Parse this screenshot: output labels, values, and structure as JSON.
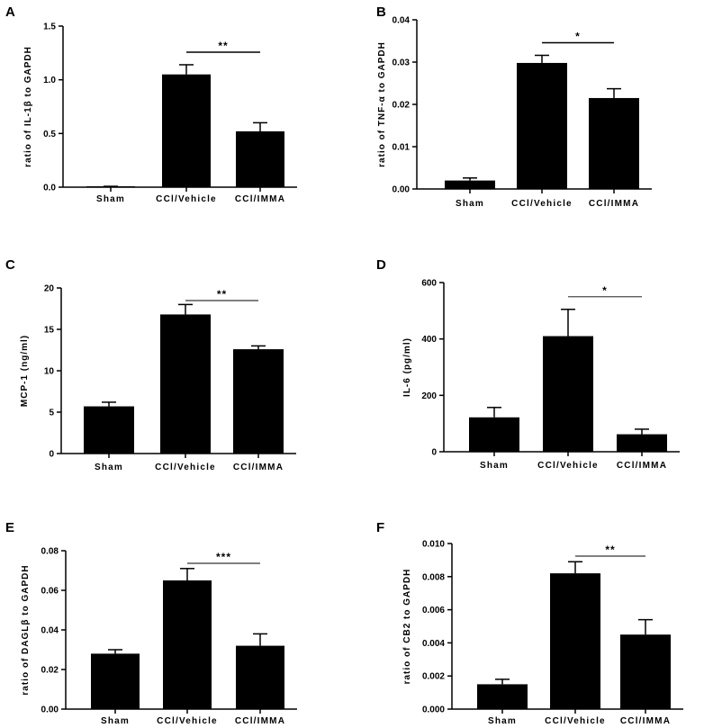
{
  "colors": {
    "bar": "#000000",
    "axis": "#000000",
    "sig_line": "#000000",
    "background": "#ffffff"
  },
  "chart_data": [
    {
      "panel": "A",
      "type": "bar",
      "ylabel_parts": [
        "ratio of IL-1",
        "β",
        " to GAPDH"
      ],
      "categories": [
        "Sham",
        "CCl/Vehicle",
        "CCl/IMMA"
      ],
      "values": [
        0.005,
        1.05,
        0.52
      ],
      "errors": [
        0.003,
        0.09,
        0.08
      ],
      "ylim": [
        0,
        1.5
      ],
      "yticks": [
        "0.0",
        "0.5",
        "1.0",
        "1.5"
      ],
      "significance": {
        "from": 1,
        "to": 2,
        "label": "**"
      }
    },
    {
      "panel": "B",
      "type": "bar",
      "ylabel_parts": [
        "ratio of TNF-",
        "α",
        " to GAPDH"
      ],
      "categories": [
        "Sham",
        "CCl/Vehicle",
        "CCl/IMMA"
      ],
      "values": [
        0.002,
        0.0298,
        0.0215
      ],
      "errors": [
        0.0006,
        0.0018,
        0.0022
      ],
      "ylim": [
        0,
        0.04
      ],
      "yticks": [
        "0.00",
        "0.01",
        "0.02",
        "0.03",
        "0.04"
      ],
      "significance": {
        "from": 1,
        "to": 2,
        "label": "*"
      }
    },
    {
      "panel": "C",
      "type": "bar",
      "ylabel_parts": [
        "MCP-1 (ng/ml)"
      ],
      "categories": [
        "Sham",
        "CCl/Vehicle",
        "CCl/IMMA"
      ],
      "values": [
        5.7,
        16.8,
        12.6
      ],
      "errors": [
        0.5,
        1.2,
        0.4
      ],
      "ylim": [
        0,
        20
      ],
      "yticks": [
        "0",
        "5",
        "10",
        "15",
        "20"
      ],
      "significance": {
        "from": 1,
        "to": 2,
        "label": "**"
      }
    },
    {
      "panel": "D",
      "type": "bar",
      "ylabel_parts": [
        "IL-6 (pg/ml)"
      ],
      "categories": [
        "Sham",
        "CCl/Vehicle",
        "CCl/IMMA"
      ],
      "values": [
        122,
        410,
        62
      ],
      "errors": [
        35,
        95,
        18
      ],
      "ylim": [
        0,
        600
      ],
      "yticks": [
        "0",
        "200",
        "400",
        "600"
      ],
      "significance": {
        "from": 1,
        "to": 2,
        "label": "*"
      }
    },
    {
      "panel": "E",
      "type": "bar",
      "ylabel_parts": [
        "ratio of DAGL",
        "β",
        " to GAPDH"
      ],
      "categories": [
        "Sham",
        "CCl/Vehicle",
        "CCl/IMMA"
      ],
      "values": [
        0.028,
        0.065,
        0.032
      ],
      "errors": [
        0.002,
        0.006,
        0.006
      ],
      "ylim": [
        0,
        0.08
      ],
      "yticks": [
        "0.00",
        "0.02",
        "0.04",
        "0.06",
        "0.08"
      ],
      "significance": {
        "from": 1,
        "to": 2,
        "label": "***"
      }
    },
    {
      "panel": "F",
      "type": "bar",
      "ylabel_parts": [
        "ratio of CB2 to GAPDH"
      ],
      "categories": [
        "Sham",
        "CCl/Vehicle",
        "CCl/IMMA"
      ],
      "values": [
        0.0015,
        0.0082,
        0.0045
      ],
      "errors": [
        0.0003,
        0.0007,
        0.0009
      ],
      "ylim": [
        0,
        0.01
      ],
      "yticks": [
        "0.000",
        "0.002",
        "0.004",
        "0.006",
        "0.008",
        "0.010"
      ],
      "significance": {
        "from": 1,
        "to": 2,
        "label": "**"
      }
    }
  ]
}
